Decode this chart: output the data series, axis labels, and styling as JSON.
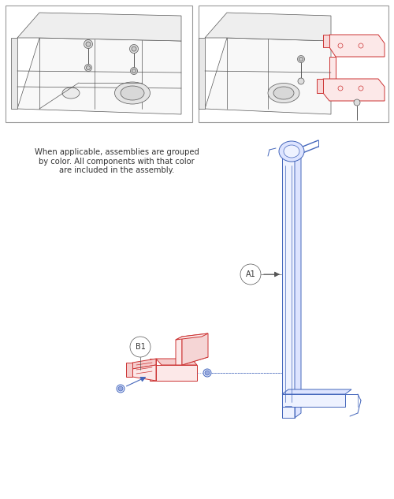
{
  "bg_color": "#ffffff",
  "border_color": "#aaaaaa",
  "dark": "#555555",
  "red": "#cc3333",
  "blue": "#4466bb",
  "light_red": "#fce8e8",
  "light_blue": "#e8eeff",
  "gray_fill": "#f0f0f0",
  "gray_mid": "#dddddd",
  "note_text": "When applicable, assemblies are grouped\nby color. All components with that color\nare included in the assembly.",
  "label_A1": "A1",
  "label_B1": "B1"
}
